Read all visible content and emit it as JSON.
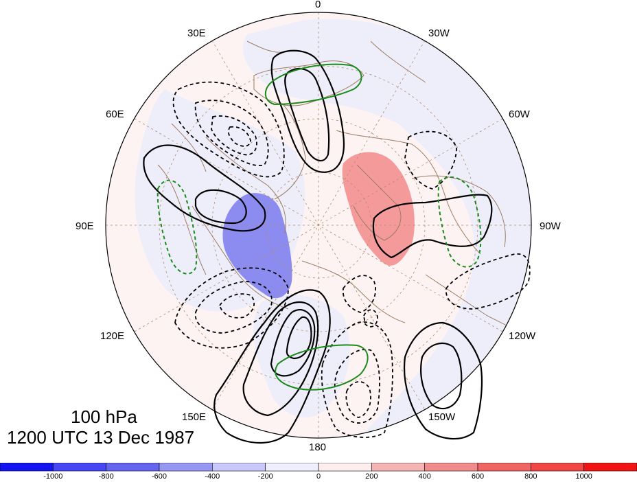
{
  "plot": {
    "level": "100 hPa",
    "valid_time": "1200 UTC 13 Dec 1987"
  },
  "longitude_labels": [
    {
      "key": "0",
      "text": "0"
    },
    {
      "key": "30W",
      "text": "30W"
    },
    {
      "key": "60W",
      "text": "60W"
    },
    {
      "key": "90W",
      "text": "90W"
    },
    {
      "key": "120W",
      "text": "120W"
    },
    {
      "key": "150W",
      "text": "150W"
    },
    {
      "key": "180",
      "text": "180"
    },
    {
      "key": "150E",
      "text": "150E"
    },
    {
      "key": "120E",
      "text": "120E"
    },
    {
      "key": "90E",
      "text": "90E"
    },
    {
      "key": "60E",
      "text": "60E"
    },
    {
      "key": "30E",
      "text": "30E"
    }
  ],
  "colorbar": {
    "bins": [
      {
        "color": "#1414f0"
      },
      {
        "color": "#4646f5"
      },
      {
        "color": "#6464f0"
      },
      {
        "color": "#9696f5"
      },
      {
        "color": "#c8c8fa"
      },
      {
        "color": "#eeeefc"
      },
      {
        "color": "#fdeeee"
      },
      {
        "color": "#f5b4b4"
      },
      {
        "color": "#f08c8c"
      },
      {
        "color": "#f06464"
      },
      {
        "color": "#f04646"
      },
      {
        "color": "#f01414"
      }
    ],
    "tick_labels": [
      "-1000",
      "-800",
      "-600",
      "-400",
      "-200",
      "0",
      "200",
      "400",
      "600",
      "800",
      "1000"
    ]
  },
  "colors": {
    "positive_shading": "#f59a9a",
    "negative_shading": "#8c8cf0",
    "contour": "#000000",
    "green_contour": "#1a8a1a",
    "coastline": "#9c7c62",
    "graticule": "#b08c6a"
  }
}
